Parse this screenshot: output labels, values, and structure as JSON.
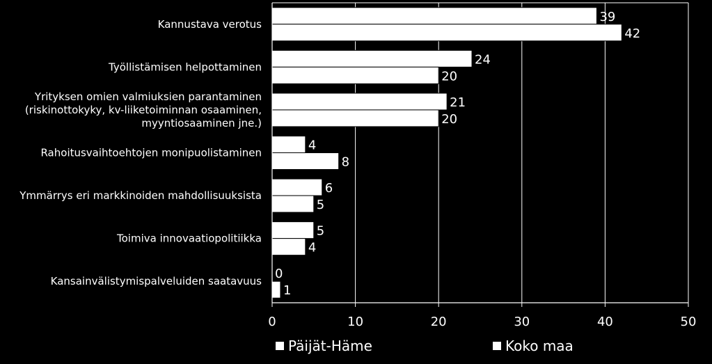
{
  "chart_data": {
    "type": "bar",
    "orientation": "horizontal",
    "categories": [
      [
        "Kannustava verotus"
      ],
      [
        "Työllistämisen helpottaminen"
      ],
      [
        "Yrityksen omien valmiuksien parantaminen",
        "(riskinottokyky, kv-liiketoiminnan osaaminen,",
        "myyntiosaaminen jne.)"
      ],
      [
        "Rahoitusvaihtoehtojen monipuolistaminen"
      ],
      [
        "Ymmärrys eri markkinoiden mahdollisuuksista"
      ],
      [
        "Toimiva innovaatiopolitiikka"
      ],
      [
        "Kansainvälistymispalveluiden saatavuus"
      ]
    ],
    "series": [
      {
        "name": "Päijät-Häme",
        "values": [
          39,
          24,
          21,
          4,
          6,
          5,
          0
        ]
      },
      {
        "name": "Koko maa",
        "values": [
          42,
          20,
          20,
          8,
          5,
          4,
          1
        ]
      }
    ],
    "xlim": [
      0,
      50
    ],
    "xticks": [
      0,
      10,
      20,
      30,
      40,
      50
    ],
    "grid": true,
    "legend_position": "bottom",
    "colors": {
      "background": "#000000",
      "bars": "#ffffff",
      "bar_outline": "#000000",
      "grid": "#ffffff",
      "text": "#ffffff"
    }
  }
}
